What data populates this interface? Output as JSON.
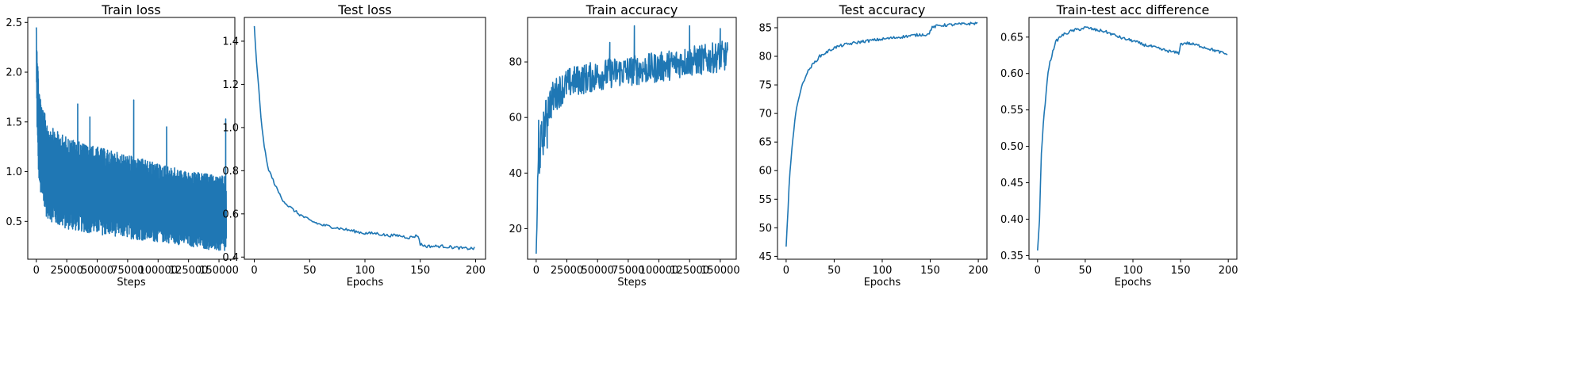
{
  "style": {
    "line_color": "#1f77b4"
  },
  "chart_data": [
    {
      "type": "line",
      "title": "Train loss",
      "xlabel": "Steps",
      "ylabel": "",
      "xlim": [
        -7000,
        163000
      ],
      "ylim": [
        0.12,
        2.55
      ],
      "xticks": [
        0,
        25000,
        50000,
        75000,
        100000,
        125000,
        150000
      ],
      "xtick_labels": [
        "0",
        "25000",
        "50000",
        "75000",
        "100000",
        "125000",
        "150000"
      ],
      "yticks": [
        0.5,
        1.0,
        1.5,
        2.0,
        2.5
      ],
      "ytick_labels": [
        "0.5",
        "1.0",
        "1.5",
        "2.0",
        "2.5"
      ],
      "series": [
        {
          "x": [
            0,
            800,
            1600,
            3000,
            5000,
            8000,
            12000,
            18000,
            25000,
            35000,
            50000,
            65000,
            80000,
            95000,
            110000,
            125000,
            140000,
            156000
          ],
          "y": [
            2.45,
            1.95,
            1.55,
            1.3,
            1.1,
            0.95,
            0.85,
            0.8,
            0.75,
            0.72,
            0.7,
            0.68,
            0.66,
            0.65,
            0.63,
            0.6,
            0.57,
            0.55
          ],
          "band_low": [
            2.0,
            1.3,
            1.0,
            0.8,
            0.65,
            0.55,
            0.5,
            0.45,
            0.42,
            0.4,
            0.37,
            0.35,
            0.32,
            0.3,
            0.28,
            0.25,
            0.22,
            0.18
          ],
          "band_high": [
            2.45,
            2.3,
            2.0,
            1.8,
            1.65,
            1.55,
            1.45,
            1.4,
            1.35,
            1.3,
            1.25,
            1.2,
            1.15,
            1.1,
            1.05,
            1.0,
            0.98,
            0.95
          ],
          "spikes": [
            [
              34000,
              1.68
            ],
            [
              80000,
              1.72
            ],
            [
              44000,
              1.55
            ],
            [
              107000,
              1.45
            ],
            [
              155500,
              1.53
            ]
          ]
        }
      ]
    },
    {
      "type": "line",
      "title": "Test loss",
      "xlabel": "Epochs",
      "ylabel": "",
      "xlim": [
        -9,
        209
      ],
      "ylim": [
        0.39,
        1.51
      ],
      "xticks": [
        0,
        50,
        100,
        150,
        200
      ],
      "xtick_labels": [
        "0",
        "50",
        "100",
        "150",
        "200"
      ],
      "yticks": [
        0.4,
        0.6,
        0.8,
        1.0,
        1.2,
        1.4
      ],
      "ytick_labels": [
        "0.4",
        "0.6",
        "0.8",
        "1.0",
        "1.2",
        "1.4"
      ],
      "series": [
        {
          "x": [
            0,
            2,
            4,
            6,
            8,
            10,
            12,
            15,
            20,
            25,
            30,
            40,
            50,
            60,
            70,
            80,
            90,
            100,
            110,
            120,
            130,
            140,
            148,
            150,
            155,
            160,
            170,
            180,
            190,
            199
          ],
          "y": [
            1.47,
            1.3,
            1.18,
            1.05,
            0.95,
            0.88,
            0.82,
            0.78,
            0.72,
            0.67,
            0.64,
            0.6,
            0.57,
            0.55,
            0.54,
            0.53,
            0.52,
            0.51,
            0.51,
            0.5,
            0.5,
            0.49,
            0.5,
            0.46,
            0.45,
            0.45,
            0.45,
            0.445,
            0.44,
            0.44
          ]
        }
      ]
    },
    {
      "type": "line",
      "title": "Train accuracy",
      "xlabel": "Steps",
      "ylabel": "",
      "xlim": [
        -7000,
        163000
      ],
      "ylim": [
        9,
        96
      ],
      "xticks": [
        0,
        25000,
        50000,
        75000,
        100000,
        125000,
        150000
      ],
      "xtick_labels": [
        "0",
        "25000",
        "50000",
        "75000",
        "100000",
        "125000",
        "150000"
      ],
      "yticks": [
        20,
        40,
        60,
        80
      ],
      "ytick_labels": [
        "20",
        "40",
        "60",
        "80"
      ],
      "series": [
        {
          "x": [
            0,
            1000,
            2000,
            4000,
            6000,
            8000,
            10000,
            15000,
            20000,
            25000,
            30000,
            40000,
            50000,
            60000,
            70000,
            80000,
            90000,
            100000,
            110000,
            120000,
            130000,
            140000,
            150000,
            156000
          ],
          "y": [
            11,
            30,
            45,
            50,
            55,
            60,
            64,
            68,
            70,
            72,
            73,
            74,
            75,
            76,
            76.5,
            77,
            77.5,
            78,
            79,
            80,
            80.5,
            81,
            82,
            82
          ],
          "noise": [
            1,
            8,
            9,
            8,
            8,
            7,
            7,
            6,
            6,
            5.5,
            5.5,
            5.5,
            5.5,
            5.5,
            5.5,
            5.5,
            5.5,
            5.5,
            5.5,
            5.5,
            5.5,
            5.5,
            5.5,
            5.5
          ],
          "spikes": [
            [
              2000,
              59
            ],
            [
              9000,
              49
            ],
            [
              60000,
              87
            ],
            [
              80000,
              93
            ],
            [
              125000,
              93
            ],
            [
              150000,
              92
            ]
          ]
        }
      ]
    },
    {
      "type": "line",
      "title": "Test accuracy",
      "xlabel": "Epochs",
      "ylabel": "",
      "xlim": [
        -9,
        209
      ],
      "ylim": [
        44.5,
        86.8
      ],
      "xticks": [
        0,
        50,
        100,
        150,
        200
      ],
      "xtick_labels": [
        "0",
        "50",
        "100",
        "150",
        "200"
      ],
      "yticks": [
        45,
        50,
        55,
        60,
        65,
        70,
        75,
        80,
        85
      ],
      "ytick_labels": [
        "45",
        "50",
        "55",
        "60",
        "65",
        "70",
        "75",
        "80",
        "85"
      ],
      "series": [
        {
          "x": [
            0,
            1,
            2,
            3,
            4,
            5,
            6,
            8,
            10,
            12,
            15,
            18,
            20,
            25,
            30,
            35,
            40,
            45,
            50,
            60,
            70,
            80,
            90,
            100,
            110,
            120,
            130,
            140,
            148,
            150,
            152,
            155,
            160,
            170,
            180,
            190,
            199
          ],
          "y": [
            46.7,
            50,
            53,
            57,
            60,
            62,
            64,
            67,
            70,
            72,
            74,
            75.5,
            76.5,
            78,
            79,
            80,
            80.5,
            81,
            81.5,
            82,
            82.3,
            82.6,
            82.8,
            83,
            83.2,
            83.4,
            83.6,
            83.8,
            83.8,
            84.5,
            85,
            85.2,
            85.4,
            85.5,
            85.6,
            85.7,
            85.8
          ]
        }
      ]
    },
    {
      "type": "line",
      "title": "Train-test acc difference",
      "xlabel": "Epochs",
      "ylabel": "",
      "xlim": [
        -9,
        209
      ],
      "ylim": [
        0.345,
        0.677
      ],
      "xticks": [
        0,
        50,
        100,
        150,
        200
      ],
      "xtick_labels": [
        "0",
        "50",
        "100",
        "150",
        "200"
      ],
      "yticks": [
        0.35,
        0.4,
        0.45,
        0.5,
        0.55,
        0.6,
        0.65
      ],
      "ytick_labels": [
        "0.35",
        "0.40",
        "0.45",
        "0.50",
        "0.55",
        "0.60",
        "0.65"
      ],
      "series": [
        {
          "x": [
            0,
            2,
            4,
            6,
            8,
            10,
            12,
            15,
            18,
            20,
            25,
            30,
            35,
            40,
            45,
            50,
            55,
            60,
            70,
            80,
            90,
            100,
            110,
            120,
            130,
            140,
            148,
            150,
            155,
            160,
            170,
            180,
            190,
            199
          ],
          "y": [
            0.357,
            0.4,
            0.49,
            0.53,
            0.56,
            0.59,
            0.61,
            0.625,
            0.64,
            0.645,
            0.652,
            0.655,
            0.658,
            0.66,
            0.661,
            0.663,
            0.662,
            0.66,
            0.658,
            0.653,
            0.648,
            0.645,
            0.64,
            0.637,
            0.633,
            0.63,
            0.628,
            0.64,
            0.642,
            0.641,
            0.638,
            0.634,
            0.63,
            0.626
          ]
        }
      ]
    }
  ]
}
